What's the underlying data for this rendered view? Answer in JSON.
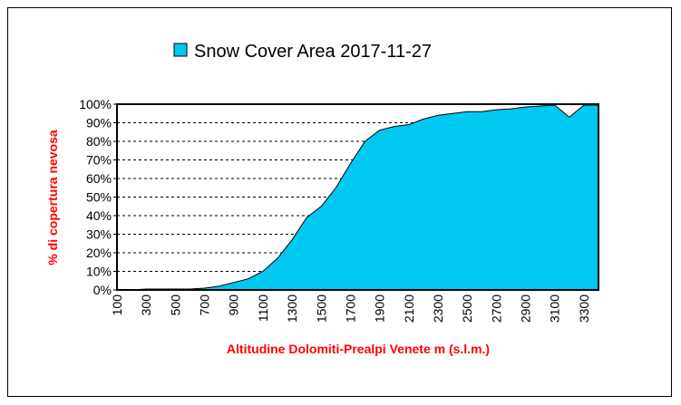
{
  "chart_data": {
    "type": "area",
    "title": "",
    "legend": {
      "label": "Snow Cover Area 2017-11-27",
      "position": "top"
    },
    "xlabel": "Altitudine Dolomiti-Prealpi Venete m (s.l.m.)",
    "ylabel": "% di copertura nevosa",
    "ylim": [
      0,
      100
    ],
    "xlim": [
      100,
      3400
    ],
    "x_ticks": [
      "100",
      "300",
      "500",
      "700",
      "900",
      "1100",
      "1300",
      "1500",
      "1700",
      "1900",
      "2100",
      "2300",
      "2500",
      "2700",
      "2900",
      "3100",
      "3300"
    ],
    "y_ticks": [
      "0%",
      "10%",
      "20%",
      "30%",
      "40%",
      "50%",
      "60%",
      "70%",
      "80%",
      "90%",
      "100%"
    ],
    "gridlines": "horizontal dashed",
    "colors": {
      "fill": "#00c8f0",
      "stroke": "#000000",
      "axis_title": "#ff0000"
    },
    "series": [
      {
        "name": "Snow Cover Area 2017-11-27",
        "x": [
          100,
          200,
          300,
          400,
          500,
          600,
          700,
          800,
          900,
          1000,
          1100,
          1200,
          1300,
          1400,
          1500,
          1600,
          1700,
          1800,
          1900,
          2000,
          2100,
          2200,
          2300,
          2400,
          2500,
          2600,
          2700,
          2800,
          2900,
          3000,
          3100,
          3200,
          3300,
          3400
        ],
        "values": [
          0,
          0,
          0.5,
          0.5,
          0.5,
          0.5,
          1,
          2,
          4,
          6,
          10,
          17,
          27,
          39,
          45,
          55,
          68,
          80,
          86,
          88,
          89,
          92,
          94,
          95,
          96,
          96,
          97,
          97.5,
          98.5,
          99,
          99.5,
          93,
          99.5,
          99.5
        ]
      }
    ]
  }
}
